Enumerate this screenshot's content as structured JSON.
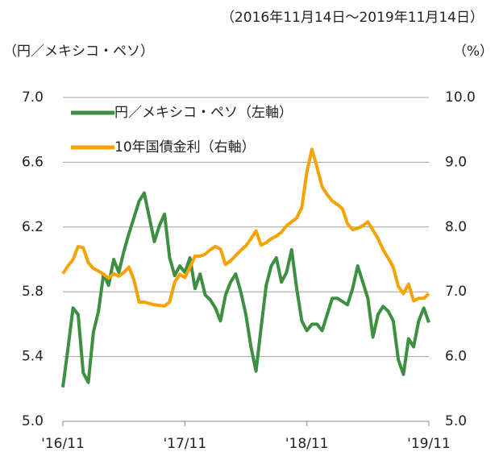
{
  "chart_data": {
    "type": "line",
    "subtitle": "（2016年11月14日～2019年11月14日）",
    "ylabel": "（円／メキシコ・ペソ）",
    "y2label": "（%）",
    "x": [
      0,
      0.5,
      1,
      1.5,
      2,
      2.5,
      3,
      3.5,
      4,
      4.5,
      5,
      5.5,
      6,
      6.5,
      7,
      7.5,
      8,
      8.5,
      9,
      9.5,
      10,
      10.5,
      11,
      11.5,
      12,
      12.5,
      13,
      13.5,
      14,
      14.5,
      15,
      15.5,
      16,
      16.5,
      17,
      17.5,
      18,
      18.5,
      19,
      19.5,
      20,
      20.5,
      21,
      21.5,
      22,
      22.5,
      23,
      23.5,
      24,
      24.5,
      25,
      25.5,
      26,
      26.5,
      27,
      27.5,
      28,
      28.5,
      29,
      29.5,
      30,
      30.5,
      31,
      31.5,
      32,
      32.5,
      33,
      33.5,
      34,
      34.5,
      35,
      35.5,
      36
    ],
    "xlim": [
      0,
      36
    ],
    "xticks": [
      {
        "value": 0,
        "label": "'16/11"
      },
      {
        "value": 12,
        "label": "'17/11"
      },
      {
        "value": 24,
        "label": "'18/11"
      },
      {
        "value": 36,
        "label": "'19/11"
      }
    ],
    "ylim": [
      5,
      7
    ],
    "yticks": [
      {
        "value": 5,
        "label": "5.0"
      },
      5.4,
      5.8,
      6.2,
      6.6,
      {
        "value": 7,
        "label": "7.0"
      }
    ],
    "y2lim": [
      5,
      10
    ],
    "y2ticks": [
      {
        "value": 5,
        "label": "5.0"
      },
      {
        "value": 6,
        "label": "6.0"
      },
      {
        "value": 7,
        "label": "7.0"
      },
      {
        "value": 8,
        "label": "8.0"
      },
      {
        "value": 9,
        "label": "9.0"
      },
      {
        "value": 10,
        "label": "10.0"
      }
    ],
    "grid": true,
    "legend": "upper left",
    "series": [
      {
        "name": "円／メキシコ・ペソ（左軸）",
        "color": "#3d8f41",
        "axis": "y",
        "values": [
          5.21,
          5.45,
          5.7,
          5.66,
          5.3,
          5.24,
          5.55,
          5.68,
          5.91,
          5.84,
          6.0,
          5.92,
          6.05,
          6.16,
          6.26,
          6.36,
          6.41,
          6.26,
          6.11,
          6.21,
          6.28,
          6.01,
          5.9,
          5.96,
          5.92,
          6.01,
          5.82,
          5.91,
          5.78,
          5.75,
          5.7,
          5.62,
          5.78,
          5.86,
          5.91,
          5.8,
          5.66,
          5.46,
          5.31,
          5.58,
          5.84,
          5.96,
          6.01,
          5.86,
          5.92,
          6.06,
          5.82,
          5.62,
          5.56,
          5.6,
          5.6,
          5.56,
          5.66,
          5.76,
          5.76,
          5.74,
          5.72,
          5.82,
          5.96,
          5.86,
          5.76,
          5.52,
          5.66,
          5.71,
          5.68,
          5.62,
          5.38,
          5.29,
          5.51,
          5.46,
          5.62,
          5.7,
          5.61
        ]
      },
      {
        "name": "10年国債金利（右軸）",
        "color": "#f5a300",
        "axis": "y2",
        "values": [
          7.28,
          7.4,
          7.5,
          7.7,
          7.68,
          7.45,
          7.36,
          7.32,
          7.27,
          7.21,
          7.28,
          7.24,
          7.3,
          7.38,
          7.18,
          6.84,
          6.84,
          6.82,
          6.8,
          6.79,
          6.78,
          6.84,
          7.15,
          7.27,
          7.22,
          7.38,
          7.55,
          7.55,
          7.58,
          7.65,
          7.7,
          7.66,
          7.42,
          7.48,
          7.56,
          7.64,
          7.71,
          7.82,
          7.94,
          7.72,
          7.76,
          7.82,
          7.86,
          7.92,
          8.02,
          8.08,
          8.14,
          8.3,
          8.85,
          9.2,
          8.92,
          8.62,
          8.5,
          8.4,
          8.35,
          8.28,
          8.05,
          7.96,
          7.98,
          8.02,
          8.08,
          7.95,
          7.82,
          7.65,
          7.52,
          7.38,
          7.08,
          6.97,
          7.12,
          6.86,
          6.9,
          6.9,
          6.97
        ]
      }
    ]
  }
}
